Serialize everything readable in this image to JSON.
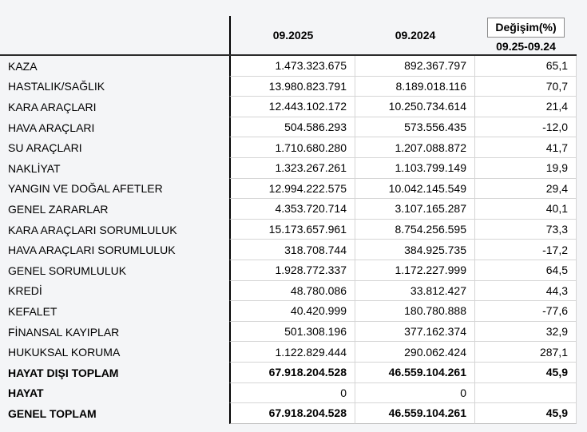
{
  "table": {
    "columns": [
      "09.2025",
      "09.2024"
    ],
    "change_header_line1": "Değişim(%)",
    "change_header_line2": "09.25-09.24",
    "rows": [
      {
        "label": "KAZA",
        "v2025": "1.473.323.675",
        "v2024": "892.367.797",
        "change": "65,1",
        "label_bold": false,
        "values_bold": false
      },
      {
        "label": "HASTALIK/SAĞLIK",
        "v2025": "13.980.823.791",
        "v2024": "8.189.018.116",
        "change": "70,7",
        "label_bold": false,
        "values_bold": false
      },
      {
        "label": "KARA ARAÇLARI",
        "v2025": "12.443.102.172",
        "v2024": "10.250.734.614",
        "change": "21,4",
        "label_bold": false,
        "values_bold": false
      },
      {
        "label": "HAVA ARAÇLARI",
        "v2025": "504.586.293",
        "v2024": "573.556.435",
        "change": "-12,0",
        "label_bold": false,
        "values_bold": false
      },
      {
        "label": "SU ARAÇLARI",
        "v2025": "1.710.680.280",
        "v2024": "1.207.088.872",
        "change": "41,7",
        "label_bold": false,
        "values_bold": false
      },
      {
        "label": "NAKLİYAT",
        "v2025": "1.323.267.261",
        "v2024": "1.103.799.149",
        "change": "19,9",
        "label_bold": false,
        "values_bold": false
      },
      {
        "label": "YANGIN VE DOĞAL AFETLER",
        "v2025": "12.994.222.575",
        "v2024": "10.042.145.549",
        "change": "29,4",
        "label_bold": false,
        "values_bold": false
      },
      {
        "label": "GENEL ZARARLAR",
        "v2025": "4.353.720.714",
        "v2024": "3.107.165.287",
        "change": "40,1",
        "label_bold": false,
        "values_bold": false
      },
      {
        "label": "KARA ARAÇLARI SORUMLULUK",
        "v2025": "15.173.657.961",
        "v2024": "8.754.256.595",
        "change": "73,3",
        "label_bold": false,
        "values_bold": false
      },
      {
        "label": "HAVA ARAÇLARI SORUMLULUK",
        "v2025": "318.708.744",
        "v2024": "384.925.735",
        "change": "-17,2",
        "label_bold": false,
        "values_bold": false
      },
      {
        "label": "GENEL SORUMLULUK",
        "v2025": "1.928.772.337",
        "v2024": "1.172.227.999",
        "change": "64,5",
        "label_bold": false,
        "values_bold": false
      },
      {
        "label": "KREDİ",
        "v2025": "48.780.086",
        "v2024": "33.812.427",
        "change": "44,3",
        "label_bold": false,
        "values_bold": false
      },
      {
        "label": "KEFALET",
        "v2025": "40.420.999",
        "v2024": "180.780.888",
        "change": "-77,6",
        "label_bold": false,
        "values_bold": false
      },
      {
        "label": "FİNANSAL KAYIPLAR",
        "v2025": "501.308.196",
        "v2024": "377.162.374",
        "change": "32,9",
        "label_bold": false,
        "values_bold": false
      },
      {
        "label": "HUKUKSAL KORUMA",
        "v2025": "1.122.829.444",
        "v2024": "290.062.424",
        "change": "287,1",
        "label_bold": false,
        "values_bold": false
      },
      {
        "label": "HAYAT DIŞI TOPLAM",
        "v2025": "67.918.204.528",
        "v2024": "46.559.104.261",
        "change": "45,9",
        "label_bold": true,
        "values_bold": true
      },
      {
        "label": "HAYAT",
        "v2025": "0",
        "v2024": "0",
        "change": "",
        "label_bold": true,
        "values_bold": false
      },
      {
        "label": "GENEL TOPLAM",
        "v2025": "67.918.204.528",
        "v2024": "46.559.104.261",
        "change": "45,9",
        "label_bold": true,
        "values_bold": true
      }
    ],
    "colors": {
      "page_bg": "#f4f5f7",
      "cell_bg": "#ffffff",
      "grid_line": "#d5d5d5",
      "column_divider": "#000000",
      "header_rule": "#2b2b2b",
      "change_box_border": "#8c8c8c"
    }
  }
}
